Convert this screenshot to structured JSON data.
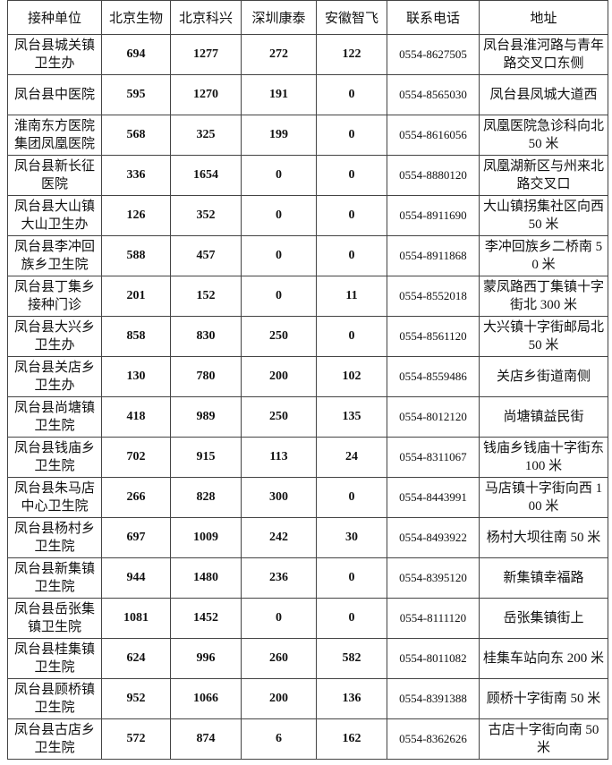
{
  "table": {
    "header": [
      "接种单位",
      "北京生物",
      "北京科兴",
      "深圳康泰",
      "安徽智飞",
      "联系电话",
      "地址"
    ],
    "rows": [
      [
        "凤台县城关镇卫生办",
        694,
        1277,
        272,
        122,
        "0554-8627505",
        "凤台县淮河路与青年路交叉口东侧"
      ],
      [
        "凤台县中医院",
        595,
        1270,
        191,
        0,
        "0554-8565030",
        "凤台县凤城大道西"
      ],
      [
        "淮南东方医院集团凤凰医院",
        568,
        325,
        199,
        0,
        "0554-8616056",
        "凤凰医院急诊科向北 50 米"
      ],
      [
        "凤台县新长征医院",
        336,
        1654,
        0,
        0,
        "0554-8880120",
        "凤凰湖新区与州来北路交叉口"
      ],
      [
        "凤台县大山镇大山卫生办",
        126,
        352,
        0,
        0,
        "0554-8911690",
        "大山镇拐集社区向西 50 米"
      ],
      [
        "凤台县李冲回族乡卫生院",
        588,
        457,
        0,
        0,
        "0554-8911868",
        "李冲回族乡二桥南 50 米"
      ],
      [
        "凤台县丁集乡接种门诊",
        201,
        152,
        0,
        11,
        "0554-8552018",
        "蒙凤路西丁集镇十字街北 300 米"
      ],
      [
        "凤台县大兴乡卫生办",
        858,
        830,
        250,
        0,
        "0554-8561120",
        "大兴镇十字街邮局北 50 米"
      ],
      [
        "凤台县关店乡卫生办",
        130,
        780,
        200,
        102,
        "0554-8559486",
        "关店乡街道南侧"
      ],
      [
        "凤台县尚塘镇卫生院",
        418,
        989,
        250,
        135,
        "0554-8012120",
        "尚塘镇益民街"
      ],
      [
        "凤台县钱庙乡卫生院",
        702,
        915,
        113,
        24,
        "0554-8311067",
        "钱庙乡钱庙十字街东 100 米"
      ],
      [
        "凤台县朱马店中心卫生院",
        266,
        828,
        300,
        0,
        "0554-8443991",
        "马店镇十字街向西 100 米"
      ],
      [
        "凤台县杨村乡卫生院",
        697,
        1009,
        242,
        30,
        "0554-8493922",
        "杨村大坝往南 50 米"
      ],
      [
        "凤台县新集镇卫生院",
        944,
        1480,
        236,
        0,
        "0554-8395120",
        "新集镇幸福路"
      ],
      [
        "凤台县岳张集镇卫生院",
        1081,
        1452,
        0,
        0,
        "0554-8111120",
        "岳张集镇街上"
      ],
      [
        "凤台县桂集镇卫生院",
        624,
        996,
        260,
        582,
        "0554-8011082",
        "桂集车站向东 200 米"
      ],
      [
        "凤台县顾桥镇卫生院",
        952,
        1066,
        200,
        136,
        "0554-8391388",
        "顾桥十字街南 50 米"
      ],
      [
        "凤台县古店乡卫生院",
        572,
        874,
        6,
        162,
        "0554-8362626",
        "古店十字街向南 50 米"
      ]
    ]
  }
}
